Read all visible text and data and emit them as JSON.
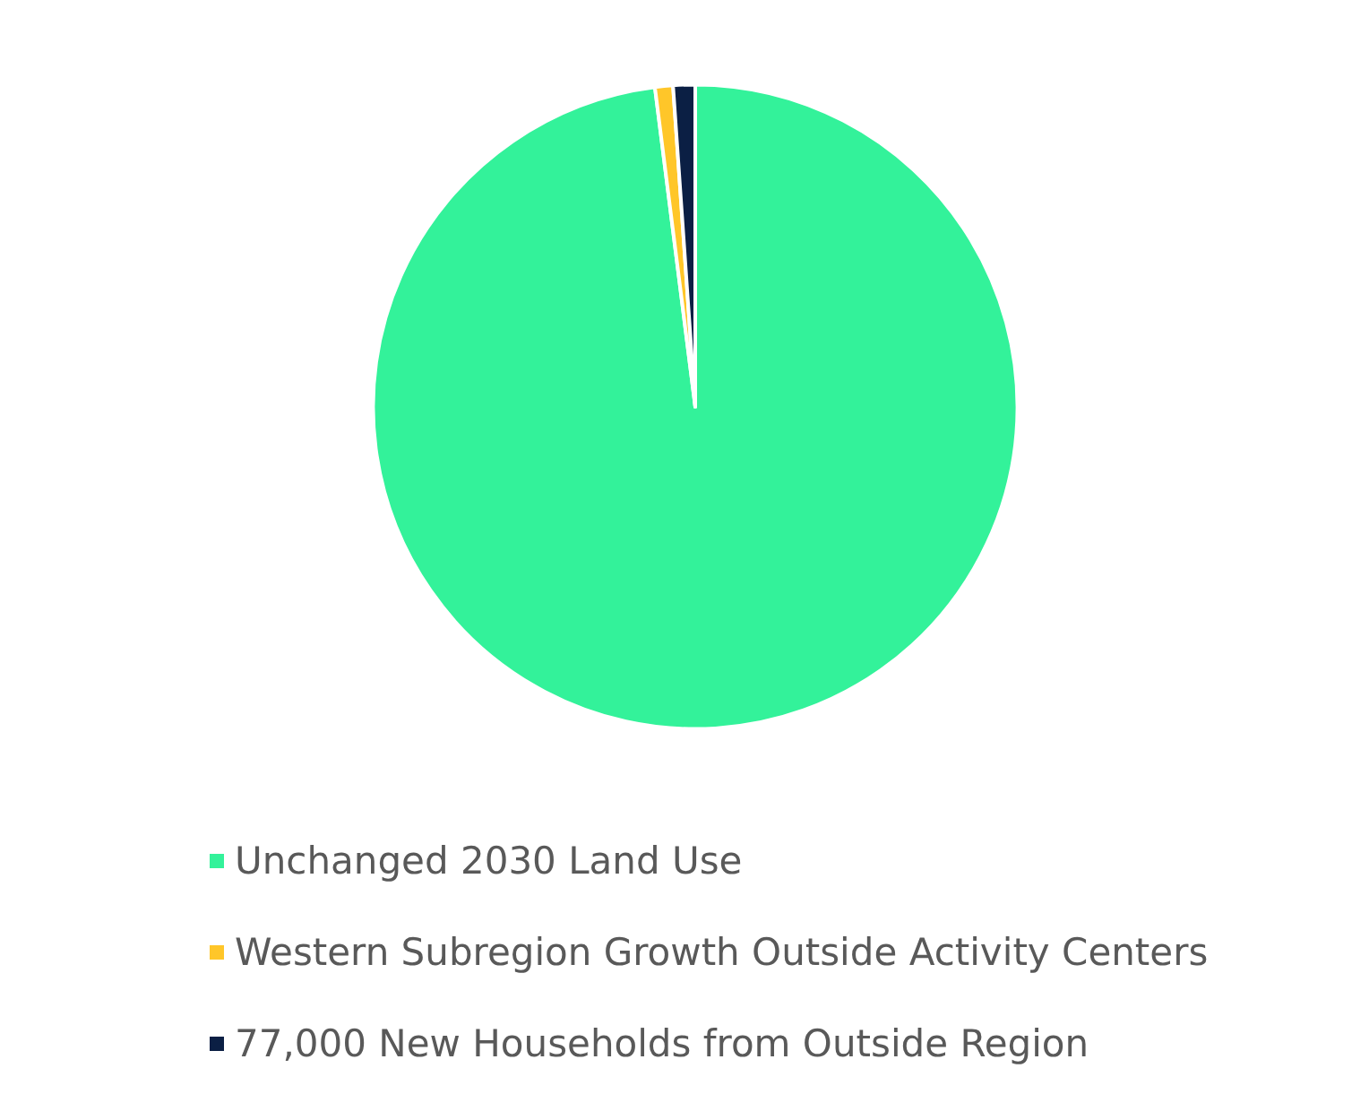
{
  "chart_data": {
    "type": "pie",
    "categories": [
      "Unchanged 2030 Land Use",
      "Western Subregion Growth Outside Activity Centers",
      "77,000 New Households from Outside Region"
    ],
    "values": [
      98,
      0.9,
      1.1
    ],
    "colors": [
      "#33f29a",
      "#ffc629",
      "#0b1f44"
    ],
    "legend": "bottom left"
  }
}
